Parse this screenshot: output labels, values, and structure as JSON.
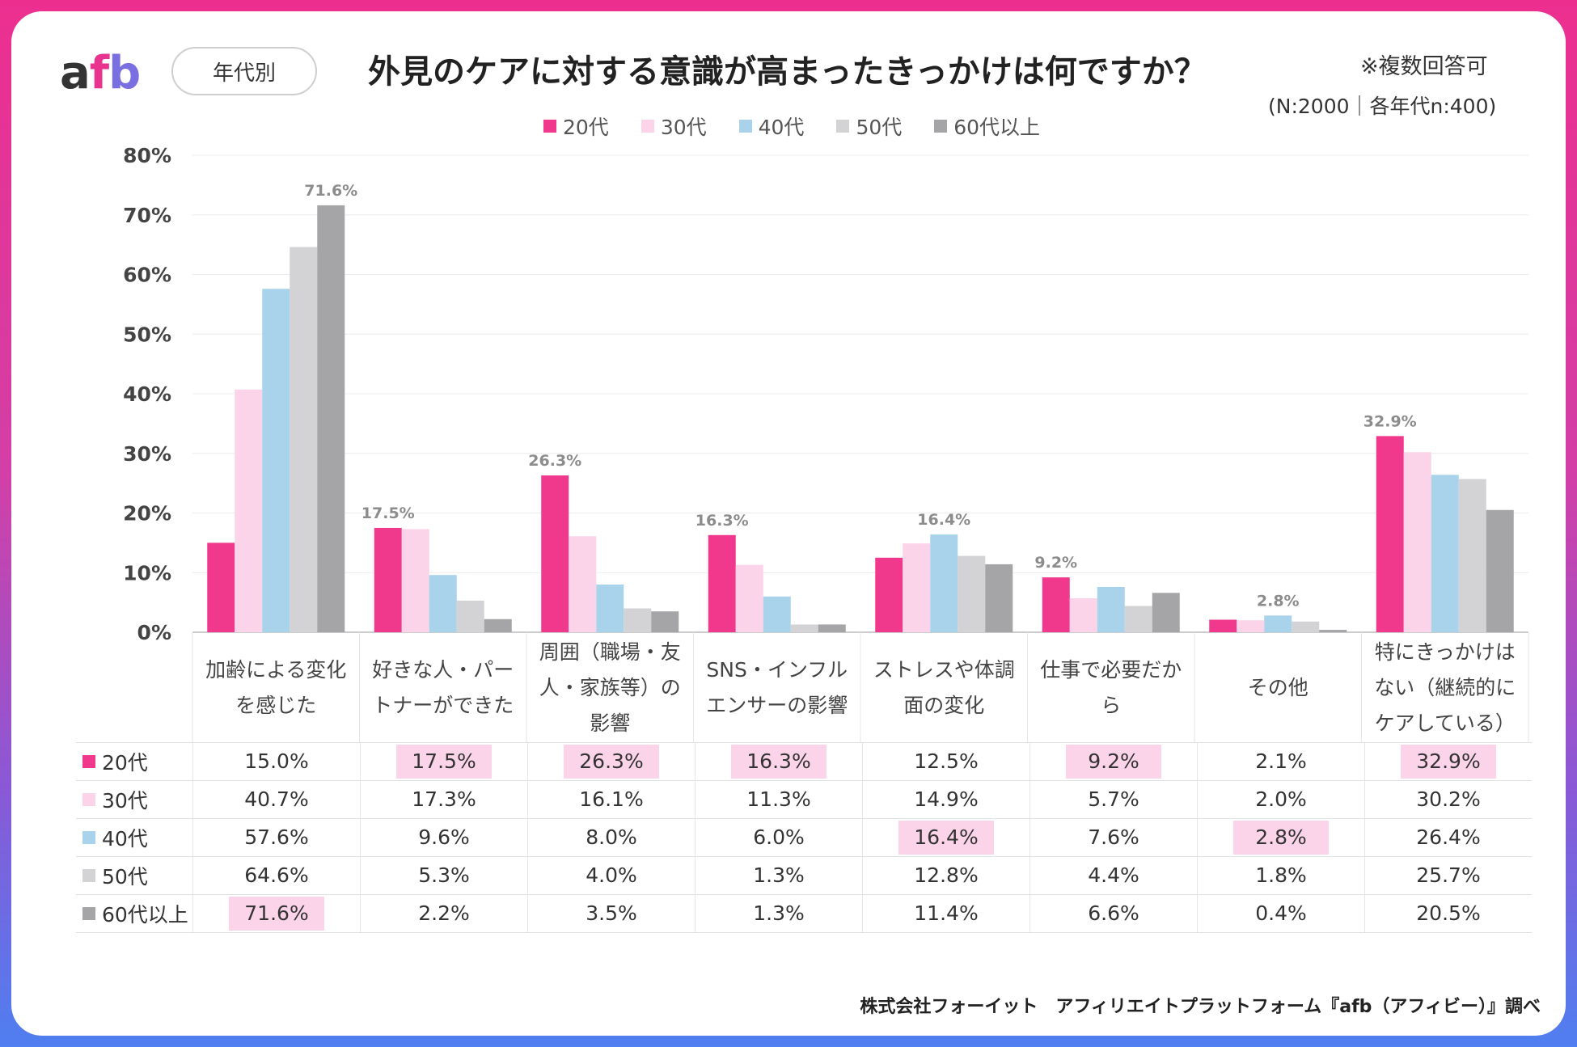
{
  "header": {
    "logo_a": "a",
    "logo_f": "f",
    "logo_b": "b",
    "filter_label": "年代別",
    "title": "外見のケアに対する意識が高まったきっかけは何ですか？",
    "note_multiple": "※複数回答可",
    "note_sample": "(N:2000｜各年代n:400)"
  },
  "legend": [
    {
      "label": "20代",
      "color": "#f0398c"
    },
    {
      "label": "30代",
      "color": "#fbd4ea"
    },
    {
      "label": "40代",
      "color": "#a9d3ea"
    },
    {
      "label": "50代",
      "color": "#d3d3d5"
    },
    {
      "label": "60代以上",
      "color": "#a5a5a7"
    }
  ],
  "chart_data": {
    "type": "bar",
    "title": "外見のケアに対する意識が高まったきっかけは何ですか？",
    "ylim": [
      0,
      80
    ],
    "yticks": [
      "0%",
      "10%",
      "20%",
      "30%",
      "40%",
      "50%",
      "60%",
      "70%",
      "80%"
    ],
    "categories": [
      [
        "加齢による変化",
        "を感じた"
      ],
      [
        "好きな人・パー",
        "トナーができた"
      ],
      [
        "周囲（職場・友",
        "人・家族等）の",
        "影響"
      ],
      [
        "SNS・インフル",
        "エンサーの影響"
      ],
      [
        "ストレスや体調",
        "面の変化"
      ],
      [
        "仕事で必要だか",
        "ら"
      ],
      [
        "その他"
      ],
      [
        "特にきっかけは",
        "ない（継続的に",
        "ケアしている）"
      ]
    ],
    "series": [
      {
        "name": "20代",
        "values": [
          15.0,
          17.5,
          26.3,
          16.3,
          12.5,
          9.2,
          2.1,
          32.9
        ]
      },
      {
        "name": "30代",
        "values": [
          40.7,
          17.3,
          16.1,
          11.3,
          14.9,
          5.7,
          2.0,
          30.2
        ]
      },
      {
        "name": "40代",
        "values": [
          57.6,
          9.6,
          8.0,
          6.0,
          16.4,
          7.6,
          2.8,
          26.4
        ]
      },
      {
        "name": "50代",
        "values": [
          64.6,
          5.3,
          4.0,
          1.3,
          12.8,
          4.4,
          1.8,
          25.7
        ]
      },
      {
        "name": "60代以上",
        "values": [
          71.6,
          2.2,
          3.5,
          1.3,
          11.4,
          6.6,
          0.4,
          20.5
        ]
      }
    ],
    "bar_labels": [
      {
        "category": 0,
        "series": 4,
        "text": "71.6%"
      },
      {
        "category": 1,
        "series": 0,
        "text": "17.5%"
      },
      {
        "category": 2,
        "series": 0,
        "text": "26.3%"
      },
      {
        "category": 3,
        "series": 0,
        "text": "16.3%"
      },
      {
        "category": 4,
        "series": 2,
        "text": "16.4%"
      },
      {
        "category": 5,
        "series": 0,
        "text": "9.2%"
      },
      {
        "category": 6,
        "series": 2,
        "text": "2.8%"
      },
      {
        "category": 7,
        "series": 0,
        "text": "32.9%"
      }
    ]
  },
  "table": {
    "rows": [
      {
        "label": "20代",
        "cells": [
          "15.0%",
          "17.5%",
          "26.3%",
          "16.3%",
          "12.5%",
          "9.2%",
          "2.1%",
          "32.9%"
        ]
      },
      {
        "label": "30代",
        "cells": [
          "40.7%",
          "17.3%",
          "16.1%",
          "11.3%",
          "14.9%",
          "5.7%",
          "2.0%",
          "30.2%"
        ]
      },
      {
        "label": "40代",
        "cells": [
          "57.6%",
          "9.6%",
          "8.0%",
          "6.0%",
          "16.4%",
          "7.6%",
          "2.8%",
          "26.4%"
        ]
      },
      {
        "label": "50代",
        "cells": [
          "64.6%",
          "5.3%",
          "4.0%",
          "1.3%",
          "12.8%",
          "4.4%",
          "1.8%",
          "25.7%"
        ]
      },
      {
        "label": "60代以上",
        "cells": [
          "71.6%",
          "2.2%",
          "3.5%",
          "1.3%",
          "11.4%",
          "6.6%",
          "0.4%",
          "20.5%"
        ]
      }
    ],
    "highlights": [
      [
        4,
        0
      ],
      [
        0,
        1
      ],
      [
        0,
        2
      ],
      [
        0,
        3
      ],
      [
        2,
        4
      ],
      [
        0,
        5
      ],
      [
        2,
        6
      ],
      [
        0,
        7
      ]
    ]
  },
  "footer": {
    "credit": "株式会社フォーイット　アフィリエイトプラットフォーム『afb（アフィビー）』調べ"
  }
}
